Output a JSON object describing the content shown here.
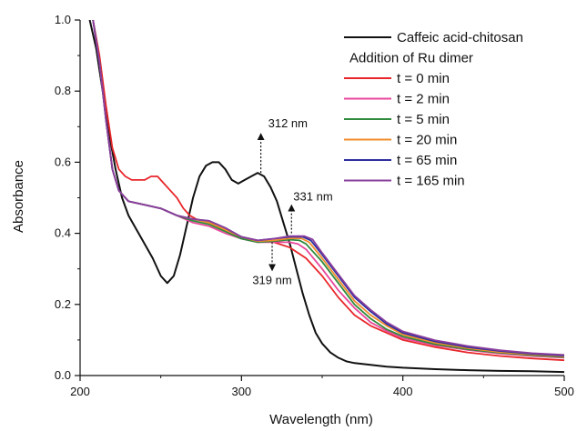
{
  "chart_data": {
    "type": "line",
    "title": "",
    "xlabel": "Wavelength (nm)",
    "ylabel": "Absorbance",
    "xlim": [
      200,
      500
    ],
    "ylim": [
      0.0,
      1.0
    ],
    "xticks": [
      200,
      300,
      400,
      500
    ],
    "yticks": [
      0.0,
      0.2,
      0.4,
      0.6,
      0.8,
      1.0
    ],
    "grid": false,
    "legend_position": "top-right",
    "legend_header": "Addition of Ru dimer",
    "series": [
      {
        "name": "Caffeic acid-chitosan",
        "color": "#111111",
        "x": [
          206,
          210,
          214,
          218,
          222,
          226,
          230,
          235,
          240,
          245,
          250,
          254,
          258,
          262,
          266,
          270,
          274,
          278,
          282,
          286,
          290,
          294,
          298,
          302,
          306,
          310,
          314,
          318,
          322,
          326,
          330,
          334,
          338,
          342,
          346,
          350,
          355,
          360,
          365,
          370,
          380,
          390,
          400,
          420,
          440,
          460,
          480,
          500
        ],
        "y": [
          1.0,
          0.92,
          0.8,
          0.68,
          0.58,
          0.5,
          0.45,
          0.41,
          0.37,
          0.33,
          0.28,
          0.26,
          0.28,
          0.34,
          0.42,
          0.5,
          0.56,
          0.59,
          0.6,
          0.6,
          0.58,
          0.55,
          0.54,
          0.55,
          0.56,
          0.57,
          0.56,
          0.53,
          0.49,
          0.43,
          0.37,
          0.3,
          0.23,
          0.17,
          0.12,
          0.09,
          0.065,
          0.05,
          0.04,
          0.035,
          0.03,
          0.025,
          0.022,
          0.018,
          0.015,
          0.013,
          0.012,
          0.01
        ]
      },
      {
        "name": "t = 0 min",
        "color": "#e8262a",
        "x": [
          208,
          212,
          216,
          220,
          224,
          228,
          232,
          236,
          240,
          244,
          248,
          252,
          256,
          260,
          264,
          268,
          272,
          280,
          290,
          300,
          310,
          320,
          330,
          340,
          350,
          360,
          370,
          380,
          390,
          400,
          420,
          440,
          460,
          480,
          500
        ],
        "y": [
          1.0,
          0.9,
          0.76,
          0.64,
          0.58,
          0.56,
          0.55,
          0.55,
          0.55,
          0.56,
          0.56,
          0.54,
          0.52,
          0.5,
          0.47,
          0.45,
          0.44,
          0.43,
          0.41,
          0.39,
          0.38,
          0.375,
          0.36,
          0.33,
          0.28,
          0.22,
          0.17,
          0.14,
          0.12,
          0.1,
          0.08,
          0.065,
          0.055,
          0.048,
          0.043
        ]
      },
      {
        "name": "t = 2 min",
        "color": "#e8479b",
        "x": [
          208,
          212,
          216,
          220,
          224,
          230,
          240,
          250,
          260,
          270,
          280,
          290,
          300,
          310,
          320,
          330,
          335,
          340,
          350,
          360,
          370,
          380,
          390,
          400,
          420,
          440,
          460,
          480,
          500
        ],
        "y": [
          1.0,
          0.88,
          0.72,
          0.58,
          0.52,
          0.49,
          0.48,
          0.47,
          0.45,
          0.43,
          0.42,
          0.4,
          0.385,
          0.375,
          0.375,
          0.375,
          0.37,
          0.355,
          0.3,
          0.24,
          0.19,
          0.15,
          0.125,
          0.105,
          0.085,
          0.072,
          0.062,
          0.055,
          0.05
        ]
      },
      {
        "name": "t = 5 min",
        "color": "#2f8a3c",
        "x": [
          208,
          212,
          216,
          220,
          224,
          230,
          240,
          250,
          260,
          270,
          280,
          290,
          300,
          310,
          320,
          330,
          336,
          340,
          350,
          360,
          370,
          380,
          390,
          400,
          420,
          440,
          460,
          480,
          500
        ],
        "y": [
          1.0,
          0.88,
          0.72,
          0.58,
          0.52,
          0.49,
          0.48,
          0.47,
          0.45,
          0.435,
          0.425,
          0.405,
          0.385,
          0.375,
          0.378,
          0.382,
          0.38,
          0.37,
          0.32,
          0.26,
          0.2,
          0.16,
          0.13,
          0.11,
          0.088,
          0.074,
          0.064,
          0.057,
          0.052
        ]
      },
      {
        "name": "t = 20 min",
        "color": "#f08c2a",
        "x": [
          208,
          212,
          216,
          220,
          224,
          230,
          240,
          250,
          260,
          270,
          280,
          290,
          300,
          310,
          320,
          330,
          337,
          342,
          350,
          360,
          370,
          380,
          390,
          400,
          420,
          440,
          460,
          480,
          500
        ],
        "y": [
          1.0,
          0.88,
          0.72,
          0.58,
          0.52,
          0.49,
          0.48,
          0.47,
          0.45,
          0.44,
          0.43,
          0.41,
          0.39,
          0.378,
          0.38,
          0.386,
          0.386,
          0.375,
          0.33,
          0.27,
          0.21,
          0.17,
          0.14,
          0.115,
          0.092,
          0.077,
          0.066,
          0.059,
          0.054
        ]
      },
      {
        "name": "t = 65 min",
        "color": "#2c2f9e",
        "x": [
          208,
          212,
          216,
          220,
          224,
          230,
          240,
          250,
          260,
          270,
          280,
          290,
          300,
          310,
          320,
          330,
          338,
          343,
          350,
          360,
          370,
          380,
          390,
          400,
          420,
          440,
          460,
          480,
          500
        ],
        "y": [
          1.0,
          0.88,
          0.72,
          0.58,
          0.52,
          0.49,
          0.48,
          0.47,
          0.45,
          0.44,
          0.435,
          0.415,
          0.39,
          0.38,
          0.385,
          0.39,
          0.39,
          0.38,
          0.34,
          0.28,
          0.22,
          0.18,
          0.145,
          0.12,
          0.096,
          0.08,
          0.069,
          0.061,
          0.056
        ]
      },
      {
        "name": "t = 165 min",
        "color": "#8a3f9e",
        "x": [
          208,
          212,
          216,
          220,
          224,
          230,
          240,
          250,
          260,
          270,
          280,
          290,
          300,
          310,
          320,
          330,
          339,
          344,
          350,
          360,
          370,
          380,
          390,
          400,
          420,
          440,
          460,
          480,
          500
        ],
        "y": [
          1.0,
          0.88,
          0.72,
          0.58,
          0.52,
          0.49,
          0.48,
          0.47,
          0.45,
          0.44,
          0.435,
          0.415,
          0.39,
          0.38,
          0.385,
          0.392,
          0.392,
          0.383,
          0.345,
          0.285,
          0.225,
          0.185,
          0.15,
          0.124,
          0.099,
          0.083,
          0.071,
          0.063,
          0.058
        ]
      }
    ],
    "annotations": [
      {
        "text": "312 nm",
        "x": 312,
        "y": 0.57,
        "direction": "up"
      },
      {
        "text": "331 nm",
        "x": 331,
        "y": 0.4,
        "direction": "up"
      },
      {
        "text": "319 nm",
        "x": 319,
        "y": 0.375,
        "direction": "down"
      }
    ]
  }
}
